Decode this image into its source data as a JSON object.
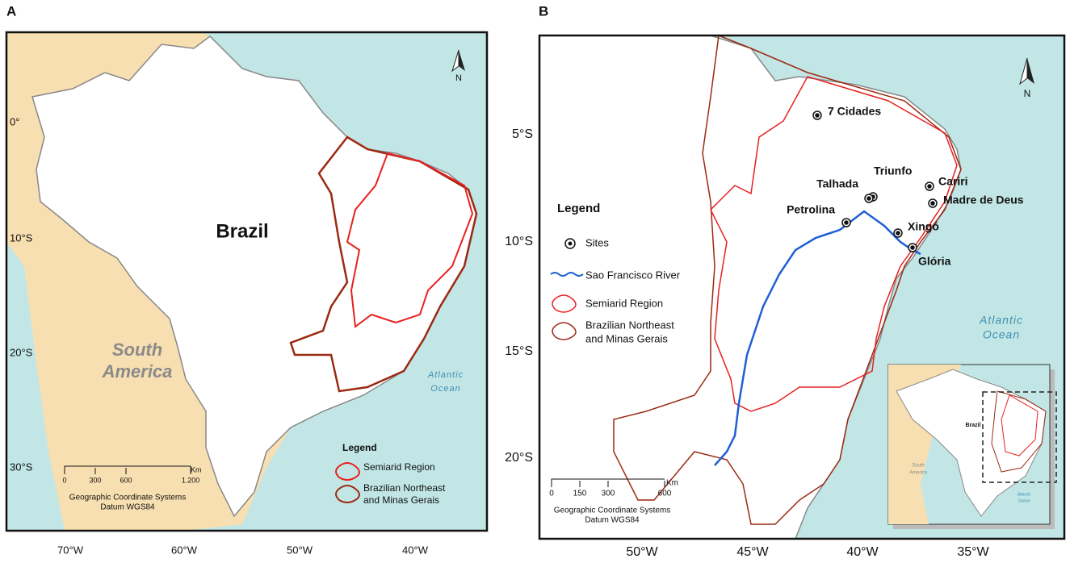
{
  "panels": [
    {
      "label": "A",
      "lat_labels": [
        "0°",
        "10°S",
        "20°S",
        "30°S"
      ],
      "lon_labels": [
        "70°W",
        "60°W",
        "50°W",
        "40°W"
      ],
      "country": "Brazil",
      "continent": [
        "South",
        "America"
      ],
      "ocean": [
        "Atlantic",
        "Ocean"
      ],
      "north": "N",
      "legend": {
        "title": "Legend",
        "items": [
          [
            "Semiarid Region"
          ],
          [
            "Brazilian Northeast",
            "and Minas Gerais"
          ]
        ]
      },
      "scale": {
        "ticks": [
          "0",
          "300",
          "600",
          "1.200"
        ],
        "unit": "Km",
        "notes": [
          "Geographic Coordinate Systems",
          "Datum  WGS84"
        ]
      }
    },
    {
      "label": "B",
      "lat_labels": [
        "5°S",
        "10°S",
        "15°S",
        "20°S"
      ],
      "lon_labels": [
        "50°W",
        "45°W",
        "40°W",
        "35°W"
      ],
      "sites": [
        "7 Cidades",
        "Triunfo",
        "Talhada",
        "Cariri",
        "Madre de Deus",
        "Petrolina",
        "Xingó",
        "Glória"
      ],
      "ocean": [
        "Atlantic",
        "Ocean"
      ],
      "north": "N",
      "legend": {
        "title": "Legend",
        "items": [
          [
            "Sites"
          ],
          [
            "Sao Francisco River"
          ],
          [
            "Semiarid Region"
          ],
          [
            "Brazilian Northeast",
            "and Minas Gerais"
          ]
        ]
      },
      "scale": {
        "ticks": [
          "0",
          "150",
          "300",
          "600"
        ],
        "unit": "Km",
        "notes": [
          "Geographic Coordinate Systems",
          "Datum  WGS84"
        ]
      },
      "inset": {
        "country": "Brazil",
        "continent": [
          "South",
          "America"
        ],
        "ocean": [
          "Atlantic",
          "Ocean"
        ]
      }
    }
  ]
}
